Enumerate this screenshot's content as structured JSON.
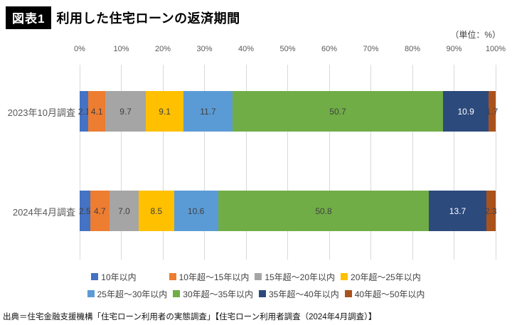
{
  "header": {
    "badge": "図表1",
    "title": "利用した住宅ローンの返済期間",
    "unit_label": "（単位：%）"
  },
  "chart_data": {
    "type": "bar",
    "variant": "horizontal-stacked",
    "unit": "%",
    "categories": [
      "2023年10月調査",
      "2024年4月調査"
    ],
    "series": [
      {
        "name": "10年以内",
        "color": "#4472C4",
        "label_color": "#404040",
        "values": [
          2.1,
          2.5
        ]
      },
      {
        "name": "10年超～15年以内",
        "color": "#ED7D31",
        "label_color": "#404040",
        "values": [
          4.1,
          4.7
        ]
      },
      {
        "name": "15年超～20年以内",
        "color": "#A5A5A5",
        "label_color": "#404040",
        "values": [
          9.7,
          7.0
        ]
      },
      {
        "name": "20年超～25年以内",
        "color": "#FFC000",
        "label_color": "#404040",
        "values": [
          9.1,
          8.5
        ]
      },
      {
        "name": "25年超～30年以内",
        "color": "#5B9BD5",
        "label_color": "#404040",
        "values": [
          11.7,
          10.6
        ]
      },
      {
        "name": "30年超～35年以内",
        "color": "#70AD47",
        "label_color": "#404040",
        "values": [
          50.7,
          50.8
        ]
      },
      {
        "name": "35年超～40年以内",
        "color": "#2C4A7C",
        "label_color": "#FFFFFF",
        "values": [
          10.9,
          13.7
        ]
      },
      {
        "name": "40年超～50年以内",
        "color": "#AA521B",
        "label_color": "#35405c",
        "values": [
          1.7,
          2.3
        ]
      }
    ],
    "x_axis": {
      "min": 0,
      "max": 100,
      "ticks": [
        "0%",
        "10%",
        "20%",
        "30%",
        "40%",
        "50%",
        "60%",
        "70%",
        "80%",
        "90%",
        "100%"
      ]
    },
    "grid": true,
    "legend_position": "bottom",
    "legend_rows": [
      [
        0,
        1,
        2,
        3
      ],
      [
        4,
        5,
        6,
        7
      ]
    ]
  },
  "layout_text": {},
  "source": "出典＝住宅金融支援機構「住宅ローン利用者の実態調査」【住宅ローン利用者調査（2024年4月調査）】"
}
